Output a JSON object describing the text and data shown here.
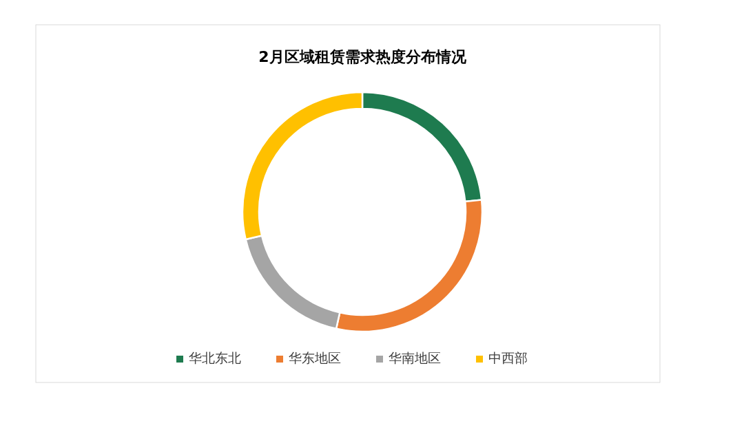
{
  "chart_data": {
    "type": "donut",
    "title": "2月区域租赁需求热度分布情况",
    "categories": [
      "华北东北",
      "华东地区",
      "华南地区",
      "中西部"
    ],
    "values": [
      23.4,
      30.1,
      17.8,
      28.7
    ],
    "colors": [
      "#1e7b4f",
      "#ed7d31",
      "#a5a5a5",
      "#ffc000"
    ],
    "legend": "bottom"
  }
}
